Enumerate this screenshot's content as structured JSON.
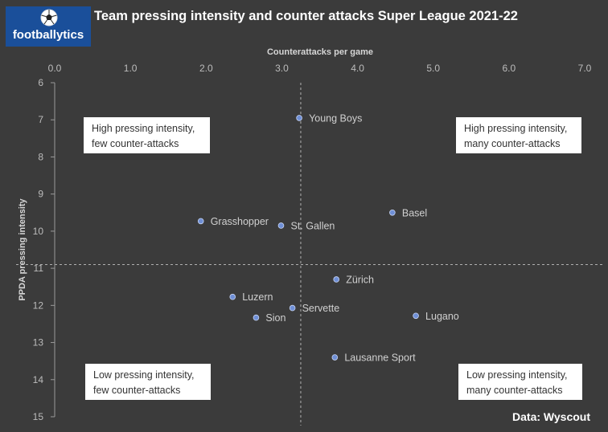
{
  "brand": {
    "name": "footballytics",
    "logo_icon": "soccer-ball-icon"
  },
  "title": "Team pressing intensity and counter attacks Super League 2021-22",
  "source": "Data: Wyscout",
  "quadrants": {
    "top_left": [
      "High pressing intensity,",
      "few counter-attacks"
    ],
    "top_right": [
      "High pressing intensity,",
      "many counter-attacks"
    ],
    "bottom_left": [
      "Low pressing intensity,",
      "few counter-attacks"
    ],
    "bottom_right": [
      "Low pressing intensity,",
      "many counter-attacks"
    ]
  },
  "colors": {
    "background": "#3b3b3b",
    "point": "#6f8fd6",
    "logo_background": "#1a4f9a"
  },
  "chart_data": {
    "type": "scatter",
    "title": "Team pressing intensity and counter attacks Super League 2021-22",
    "xlabel": "Counterattacks per game",
    "ylabel": "PPDA pressing intensity",
    "xlim": [
      0,
      7
    ],
    "ylim": [
      6,
      15
    ],
    "y_inverted": true,
    "x_axis_position": "top",
    "x_ticks": [
      "0.0",
      "1.0",
      "2.0",
      "3.0",
      "4.0",
      "5.0",
      "6.0",
      "7.0"
    ],
    "y_ticks": [
      "6",
      "7",
      "8",
      "9",
      "10",
      "11",
      "12",
      "13",
      "14",
      "15"
    ],
    "grid": false,
    "reference_lines": {
      "x": 3.25,
      "y": 10.9
    },
    "points": [
      {
        "label": "Young Boys",
        "x": 3.23,
        "y": 6.95
      },
      {
        "label": "Basel",
        "x": 4.46,
        "y": 9.5
      },
      {
        "label": "Grasshopper",
        "x": 1.93,
        "y": 9.73
      },
      {
        "label": "St. Gallen",
        "x": 2.99,
        "y": 9.85
      },
      {
        "label": "Zürich",
        "x": 3.72,
        "y": 11.3
      },
      {
        "label": "Luzern",
        "x": 2.35,
        "y": 11.77
      },
      {
        "label": "Servette",
        "x": 3.14,
        "y": 12.07
      },
      {
        "label": "Sion",
        "x": 2.66,
        "y": 12.33
      },
      {
        "label": "Lugano",
        "x": 4.77,
        "y": 12.28
      },
      {
        "label": "Lausanne Sport",
        "x": 3.7,
        "y": 13.4
      }
    ]
  }
}
